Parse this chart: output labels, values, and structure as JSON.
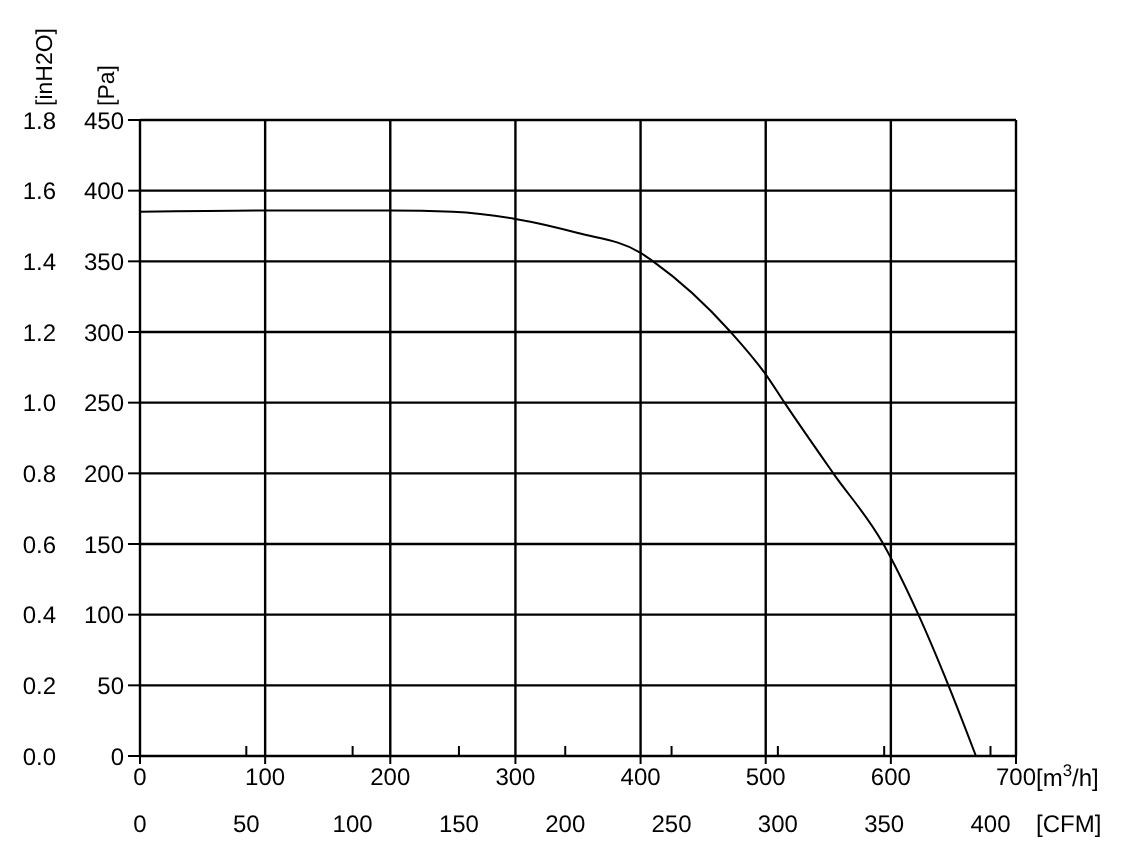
{
  "chart_data": {
    "type": "line",
    "xlabel": "[m$^{3}$/h]",
    "x2label": "[CFM]",
    "ylabel": "[Pa]",
    "y2label": "[inH2O]",
    "series": [
      {
        "color": "#000000",
        "axis": "y",
        "x": [
          0,
          100,
          200,
          250,
          300,
          350,
          400,
          410,
          472,
          500,
          515,
          554,
          594,
          622,
          646,
          668
        ],
        "values": [
          385,
          386,
          386,
          385,
          380,
          370,
          356,
          350,
          300,
          270,
          250,
          200,
          150,
          100,
          50,
          0
        ]
      }
    ],
    "xlim": [
      0,
      700
    ],
    "xticks": [
      0,
      100,
      200,
      300,
      400,
      500,
      600,
      700
    ],
    "x2lim": [
      0,
      412
    ],
    "x2ticks": [
      0,
      50,
      100,
      150,
      200,
      250,
      300,
      350,
      400
    ],
    "ylim": [
      0,
      450
    ],
    "yticks": [
      0,
      50,
      100,
      150,
      200,
      250,
      300,
      350,
      400,
      450
    ],
    "y2lim": [
      0,
      1.8
    ],
    "y2ticks": [
      {
        "value": 0,
        "label": "0.0"
      },
      0.2,
      0.4,
      0.6,
      0.8,
      {
        "value": 1,
        "label": "1.0"
      },
      1.2,
      1.4,
      1.6,
      1.8
    ],
    "grid": true,
    "marker": "none",
    "line_style": "solid"
  }
}
